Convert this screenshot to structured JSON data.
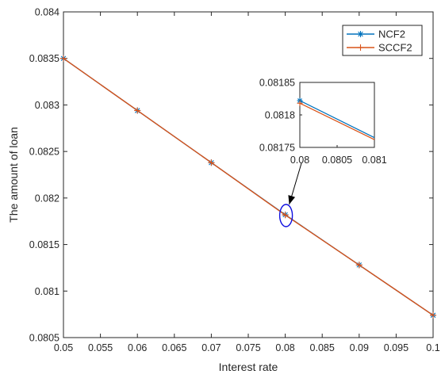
{
  "chart_data": {
    "type": "line",
    "title": "",
    "xlabel": "Interest rate",
    "ylabel": "The amount of loan",
    "xlim": [
      0.05,
      0.1
    ],
    "ylim": [
      0.0805,
      0.084
    ],
    "xticks": [
      "0.05",
      "0.055",
      "0.06",
      "0.065",
      "0.07",
      "0.075",
      "0.08",
      "0.085",
      "0.09",
      "0.095",
      "0.1"
    ],
    "yticks": [
      "0.0805",
      "0.081",
      "0.0815",
      "0.082",
      "0.0825",
      "0.083",
      "0.0835",
      "0.084"
    ],
    "grid": false,
    "legend_position": "top-right",
    "series": [
      {
        "name": "NCF2",
        "color": "#0072BD",
        "marker": "asterisk",
        "x": [
          0.05,
          0.06,
          0.07,
          0.08,
          0.09,
          0.1
        ],
        "y": [
          0.0835,
          0.08294,
          0.08238,
          0.08182,
          0.08128,
          0.08074
        ]
      },
      {
        "name": "SCCF2",
        "color": "#D95319",
        "marker": "plus",
        "x": [
          0.05,
          0.06,
          0.07,
          0.08,
          0.09,
          0.1
        ],
        "y": [
          0.0835,
          0.08294,
          0.08238,
          0.081817,
          0.08128,
          0.08074
        ]
      }
    ],
    "inset": {
      "xlim": [
        0.08,
        0.081
      ],
      "ylim": [
        0.08175,
        0.08185
      ],
      "xticks": [
        "0.08",
        "0.0805",
        "0.081"
      ],
      "yticks": [
        "0.08175",
        "0.0818",
        "0.08185"
      ],
      "series": [
        {
          "name": "NCF2",
          "x": [
            0.08,
            0.081
          ],
          "y": [
            0.081822,
            0.081765
          ]
        },
        {
          "name": "SCCF2",
          "x": [
            0.08,
            0.081
          ],
          "y": [
            0.081818,
            0.081762
          ]
        }
      ],
      "highlight": {
        "x": 0.08,
        "y": 0.08182
      }
    }
  }
}
